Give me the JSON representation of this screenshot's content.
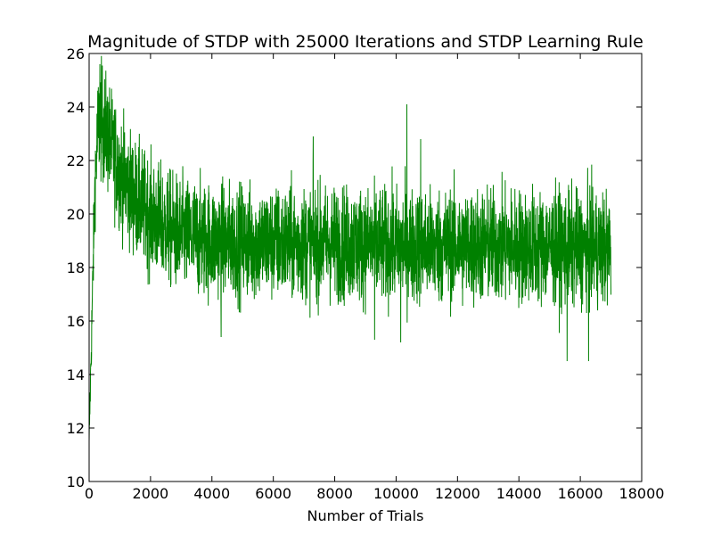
{
  "chart_data": {
    "type": "line",
    "title": "Magnitude of STDP with 25000 Iterations and STDP Learning Rule",
    "xlabel": "Number of Trials",
    "ylabel": "",
    "xlim": [
      0,
      18000
    ],
    "ylim": [
      10,
      26
    ],
    "xticks": [
      0,
      2000,
      4000,
      6000,
      8000,
      10000,
      12000,
      14000,
      16000,
      18000
    ],
    "yticks": [
      10,
      12,
      14,
      16,
      18,
      20,
      22,
      24,
      26
    ],
    "grid": false,
    "legend": "none",
    "series": [
      {
        "color": "#008000",
        "x_range": [
          0,
          17000
        ],
        "trend": [
          [
            0,
            11.5
          ],
          [
            100,
            16.5
          ],
          [
            200,
            21.5
          ],
          [
            300,
            23.3
          ],
          [
            400,
            23.5
          ],
          [
            700,
            22.6
          ],
          [
            1000,
            21.6
          ],
          [
            1500,
            20.6
          ],
          [
            2000,
            19.9
          ],
          [
            2500,
            19.5
          ],
          [
            3000,
            19.2
          ],
          [
            4000,
            19.0
          ],
          [
            6000,
            18.9
          ],
          [
            8000,
            18.9
          ],
          [
            10000,
            18.8
          ],
          [
            12000,
            18.8
          ],
          [
            14000,
            18.8
          ],
          [
            16000,
            18.7
          ],
          [
            17000,
            18.7
          ]
        ],
        "noise_band_half_width": 1.4,
        "extremes": [
          [
            350,
            25.6
          ],
          [
            10350,
            24.1
          ],
          [
            10800,
            22.8
          ],
          [
            7300,
            22.9
          ],
          [
            15570,
            14.5
          ],
          [
            16270,
            14.5
          ],
          [
            10150,
            15.2
          ],
          [
            9300,
            15.3
          ],
          [
            4300,
            15.4
          ]
        ]
      }
    ]
  }
}
